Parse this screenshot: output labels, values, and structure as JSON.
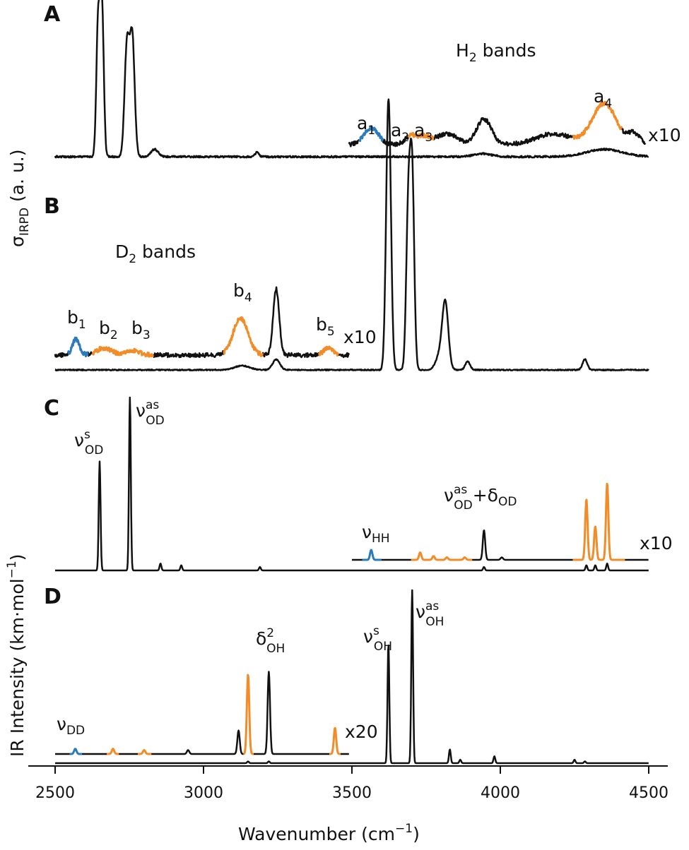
{
  "colors": {
    "trace": "#111111",
    "blue": "#2b7bba",
    "orange": "#f28c28",
    "axis": "#111111"
  },
  "axes": {
    "xlabel_main": "Wavenumber (cm",
    "xlabel_sup": "−1",
    "xlabel_end": ")",
    "ylabel_top_main": "σ",
    "ylabel_top_sub": "IRPD",
    "ylabel_top_end": " (a. u.)",
    "ylabel_bottom_main": "IR Intensity (km·mol",
    "ylabel_bottom_sup": "−1",
    "ylabel_bottom_end": ")",
    "xticks": [
      "2500",
      "3000",
      "3500",
      "4000",
      "4500"
    ]
  },
  "panels": {
    "A": {
      "letter": "A",
      "title": "H",
      "title_sub": "2",
      "title_end": " bands",
      "scale": "x10",
      "labels": [
        {
          "base": "a",
          "sub": "1"
        },
        {
          "base": "a",
          "sub": "2"
        },
        {
          "base": "a",
          "sub": "3"
        },
        {
          "base": "a",
          "sub": "4"
        }
      ]
    },
    "B": {
      "letter": "B",
      "title": "D",
      "title_sub": "2",
      "title_end": " bands",
      "scale": "x10",
      "labels": [
        {
          "base": "b",
          "sub": "1"
        },
        {
          "base": "b",
          "sub": "2"
        },
        {
          "base": "b",
          "sub": "3"
        },
        {
          "base": "b",
          "sub": "4"
        },
        {
          "base": "b",
          "sub": "5"
        }
      ]
    },
    "C": {
      "letter": "C",
      "scale": "x10",
      "labels": [
        {
          "base": "ν",
          "sup": "s",
          "sub": "OD"
        },
        {
          "base": "ν",
          "sup": "as",
          "sub": "OD"
        },
        {
          "base": "ν",
          "sub": "HH"
        },
        {
          "base": "ν",
          "sup": "as",
          "sub": "OD",
          "plus": "+δ",
          "sub2": "OD"
        }
      ]
    },
    "D": {
      "letter": "D",
      "scale": "x20",
      "labels": [
        {
          "base": "ν",
          "sub": "DD"
        },
        {
          "base": "δ",
          "sup": "2",
          "sub": "OH"
        },
        {
          "base": "ν",
          "sup": "s",
          "sub": "OH"
        },
        {
          "base": "ν",
          "sup": "as",
          "sub": "OH"
        }
      ]
    }
  },
  "chart_data": {
    "type": "line",
    "xlabel": "Wavenumber (cm−1)",
    "xlim": [
      2500,
      4500
    ],
    "xticks": [
      2500,
      3000,
      3500,
      4000,
      4500
    ],
    "ylabel_experiment": "σIRPD (a. u.)",
    "ylabel_theory": "IR Intensity (km·mol−1)",
    "panels": [
      {
        "id": "A",
        "title": "H2 bands",
        "magnified_factor": 10,
        "magnified_range": [
          3490,
          4490
        ],
        "main_peaks": [
          {
            "x": 2645,
            "h": 0.92,
            "w": 6
          },
          {
            "x": 2658,
            "h": 1.0,
            "w": 6
          },
          {
            "x": 2742,
            "h": 0.75,
            "w": 8
          },
          {
            "x": 2760,
            "h": 0.8,
            "w": 8
          },
          {
            "x": 2835,
            "h": 0.05,
            "w": 12
          },
          {
            "x": 3180,
            "h": 0.03,
            "w": 6
          },
          {
            "x": 3940,
            "h": 0.02,
            "w": 30
          },
          {
            "x": 4350,
            "h": 0.05,
            "w": 60
          }
        ],
        "magnified_peaks": [
          {
            "x": 3565,
            "h": 0.18,
            "w": 25,
            "color": "blue"
          },
          {
            "x": 3700,
            "h": 0.1,
            "w": 20,
            "color": "orange"
          },
          {
            "x": 3745,
            "h": 0.08,
            "w": 20,
            "color": "orange"
          },
          {
            "x": 3820,
            "h": 0.12,
            "w": 35
          },
          {
            "x": 3945,
            "h": 0.28,
            "w": 25
          },
          {
            "x": 4180,
            "h": 0.12,
            "w": 60
          },
          {
            "x": 4350,
            "h": 0.45,
            "w": 40,
            "color": "orange"
          },
          {
            "x": 4450,
            "h": 0.12,
            "w": 20
          }
        ],
        "highlight_ranges": [
          {
            "range": [
              3525,
              3605
            ],
            "color": "blue"
          },
          {
            "range": [
              3690,
              3775
            ],
            "color": "orange"
          },
          {
            "range": [
              4245,
              4410
            ],
            "color": "orange"
          }
        ],
        "band_labels": [
          {
            "name": "a1",
            "x": 3560
          },
          {
            "name": "a2",
            "x": 3700
          },
          {
            "name": "a3",
            "x": 3755
          },
          {
            "name": "a4",
            "x": 4355
          }
        ]
      },
      {
        "id": "B",
        "title": "D2 bands",
        "magnified_factor": 10,
        "magnified_range": [
          2500,
          3490
        ],
        "main_peaks": [
          {
            "x": 3130,
            "h": 0.02,
            "w": 25
          },
          {
            "x": 3245,
            "h": 0.05,
            "w": 12
          },
          {
            "x": 3620,
            "h": 0.75,
            "w": 7
          },
          {
            "x": 3627,
            "h": 0.7,
            "w": 7
          },
          {
            "x": 3690,
            "h": 0.75,
            "w": 7
          },
          {
            "x": 3703,
            "h": 0.9,
            "w": 7
          },
          {
            "x": 3815,
            "h": 0.28,
            "w": 10
          },
          {
            "x": 3800,
            "h": 0.08,
            "w": 15
          },
          {
            "x": 3890,
            "h": 0.04,
            "w": 8
          },
          {
            "x": 4285,
            "h": 0.05,
            "w": 8
          }
        ],
        "magnified_peaks": [
          {
            "x": 2570,
            "h": 0.18,
            "w": 12,
            "color": "blue"
          },
          {
            "x": 2665,
            "h": 0.08,
            "w": 25,
            "color": "orange"
          },
          {
            "x": 2760,
            "h": 0.05,
            "w": 25,
            "color": "orange"
          },
          {
            "x": 3125,
            "h": 0.42,
            "w": 25,
            "color": "orange"
          },
          {
            "x": 3245,
            "h": 0.75,
            "w": 10
          },
          {
            "x": 3420,
            "h": 0.08,
            "w": 15,
            "color": "orange"
          }
        ],
        "highlight_ranges": [
          {
            "range": [
              2545,
              2610
            ],
            "color": "blue"
          },
          {
            "range": [
              2625,
              2830
            ],
            "color": "orange"
          },
          {
            "range": [
              3070,
              3200
            ],
            "color": "orange"
          },
          {
            "range": [
              3390,
              3455
            ],
            "color": "orange"
          }
        ],
        "band_labels": [
          {
            "name": "b1",
            "x": 2570
          },
          {
            "name": "b2",
            "x": 2675
          },
          {
            "name": "b3",
            "x": 2755
          },
          {
            "name": "b4",
            "x": 3125
          },
          {
            "name": "b5",
            "x": 3420
          }
        ]
      },
      {
        "id": "C",
        "magnified_factor": 10,
        "magnified_range": [
          3500,
          4500
        ],
        "main_peaks": [
          {
            "x": 2650,
            "h": 0.63,
            "w": 3
          },
          {
            "x": 2752,
            "h": 1.0,
            "w": 3
          },
          {
            "x": 2855,
            "h": 0.04,
            "w": 3
          },
          {
            "x": 2925,
            "h": 0.03,
            "w": 3
          },
          {
            "x": 3190,
            "h": 0.02,
            "w": 3
          },
          {
            "x": 3945,
            "h": 0.02,
            "w": 3
          },
          {
            "x": 4290,
            "h": 0.03,
            "w": 3
          },
          {
            "x": 4320,
            "h": 0.03,
            "w": 3
          },
          {
            "x": 4360,
            "h": 0.04,
            "w": 3
          }
        ],
        "magnified_peaks": [
          {
            "x": 3565,
            "h": 0.08,
            "w": 4,
            "color": "blue"
          },
          {
            "x": 3730,
            "h": 0.06,
            "w": 4,
            "color": "orange"
          },
          {
            "x": 3775,
            "h": 0.03,
            "w": 4,
            "color": "orange"
          },
          {
            "x": 3820,
            "h": 0.02,
            "w": 4,
            "color": "orange"
          },
          {
            "x": 3880,
            "h": 0.02,
            "w": 4,
            "color": "orange"
          },
          {
            "x": 3945,
            "h": 0.24,
            "w": 4
          },
          {
            "x": 4005,
            "h": 0.02,
            "w": 4
          },
          {
            "x": 4290,
            "h": 0.49,
            "w": 4,
            "color": "orange"
          },
          {
            "x": 4320,
            "h": 0.27,
            "w": 4,
            "color": "orange"
          },
          {
            "x": 4360,
            "h": 0.62,
            "w": 4,
            "color": "orange"
          }
        ],
        "highlight_ranges": [
          {
            "range": [
              3535,
              3600
            ],
            "color": "blue"
          },
          {
            "range": [
              3700,
              3905
            ],
            "color": "orange"
          },
          {
            "range": [
              4245,
              4420
            ],
            "color": "orange"
          }
        ],
        "band_labels": [
          {
            "name": "νsOD",
            "x": 2650
          },
          {
            "name": "νasOD",
            "x": 2752
          },
          {
            "name": "νHH",
            "x": 3565
          },
          {
            "name": "νasOD+δOD",
            "x": 3945
          }
        ]
      },
      {
        "id": "D",
        "magnified_factor": 20,
        "magnified_range": [
          2500,
          3490
        ],
        "main_peaks": [
          {
            "x": 3150,
            "h": 0.01,
            "w": 3
          },
          {
            "x": 3220,
            "h": 0.01,
            "w": 3
          },
          {
            "x": 3623,
            "h": 0.69,
            "w": 3
          },
          {
            "x": 3703,
            "h": 1.0,
            "w": 3
          },
          {
            "x": 3830,
            "h": 0.08,
            "w": 3
          },
          {
            "x": 3865,
            "h": 0.02,
            "w": 3
          },
          {
            "x": 3980,
            "h": 0.04,
            "w": 3
          },
          {
            "x": 4250,
            "h": 0.02,
            "w": 3
          },
          {
            "x": 4285,
            "h": 0.01,
            "w": 3
          }
        ],
        "magnified_peaks": [
          {
            "x": 2568,
            "h": 0.04,
            "w": 4,
            "color": "blue"
          },
          {
            "x": 2695,
            "h": 0.04,
            "w": 4,
            "color": "orange"
          },
          {
            "x": 2800,
            "h": 0.03,
            "w": 4,
            "color": "orange"
          },
          {
            "x": 2948,
            "h": 0.03,
            "w": 4
          },
          {
            "x": 3118,
            "h": 0.18,
            "w": 4
          },
          {
            "x": 3150,
            "h": 0.61,
            "w": 4,
            "color": "orange"
          },
          {
            "x": 3220,
            "h": 0.63,
            "w": 4
          },
          {
            "x": 3443,
            "h": 0.2,
            "w": 4,
            "color": "orange"
          }
        ],
        "highlight_ranges": [
          {
            "range": [
              2550,
              2590
            ],
            "color": "blue"
          },
          {
            "range": [
              2675,
              2715
            ],
            "color": "orange"
          },
          {
            "range": [
              2780,
              2825
            ],
            "color": "orange"
          },
          {
            "range": [
              3135,
              3170
            ],
            "color": "orange"
          },
          {
            "range": [
              3425,
              3462
            ],
            "color": "orange"
          }
        ],
        "band_labels": [
          {
            "name": "νDD",
            "x": 2568
          },
          {
            "name": "δ2OH",
            "x": 3220
          },
          {
            "name": "νsOH",
            "x": 3623
          },
          {
            "name": "νasOH",
            "x": 3703
          }
        ]
      }
    ]
  }
}
